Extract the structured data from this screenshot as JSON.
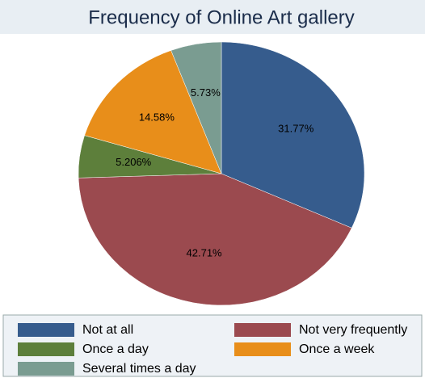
{
  "chart_data": {
    "type": "pie",
    "title": "Frequency of Online Art gallery",
    "categories": [
      "Not at all",
      "Not very frequently",
      "Once a day",
      "Once a week",
      "Several times a day"
    ],
    "values": [
      31.77,
      42.71,
      5.206,
      14.58,
      5.73
    ],
    "value_labels": [
      "31.77%",
      "42.71%",
      "5.206%",
      "14.58%",
      "5.73%"
    ],
    "colors": [
      "#365c8d",
      "#9b4a4f",
      "#5d7f3b",
      "#e88e1a",
      "#7a9c91"
    ]
  }
}
